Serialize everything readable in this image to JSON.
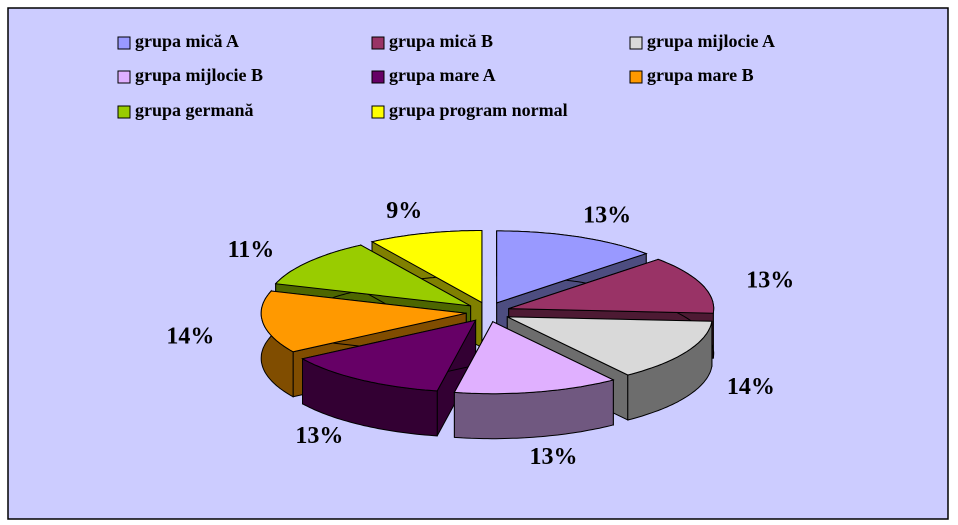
{
  "chart_data": {
    "type": "pie3d",
    "categories": [
      "grupa mică A",
      "grupa mică B",
      "grupa mijlocie A",
      "grupa mijlocie B",
      "grupa mare A",
      "grupa mare B",
      "grupa germană",
      "grupa program normal"
    ],
    "values": [
      13,
      13,
      14,
      13,
      13,
      14,
      11,
      9
    ],
    "value_labels": [
      "13%",
      "13%",
      "14%",
      "13%",
      "13%",
      "14%",
      "11%",
      "9%"
    ],
    "colors": [
      "#9999ff",
      "#993366",
      "#d9d9d9",
      "#e0b0ff",
      "#660066",
      "#ff9900",
      "#99cc00",
      "#ffff00"
    ],
    "legend": "top"
  }
}
